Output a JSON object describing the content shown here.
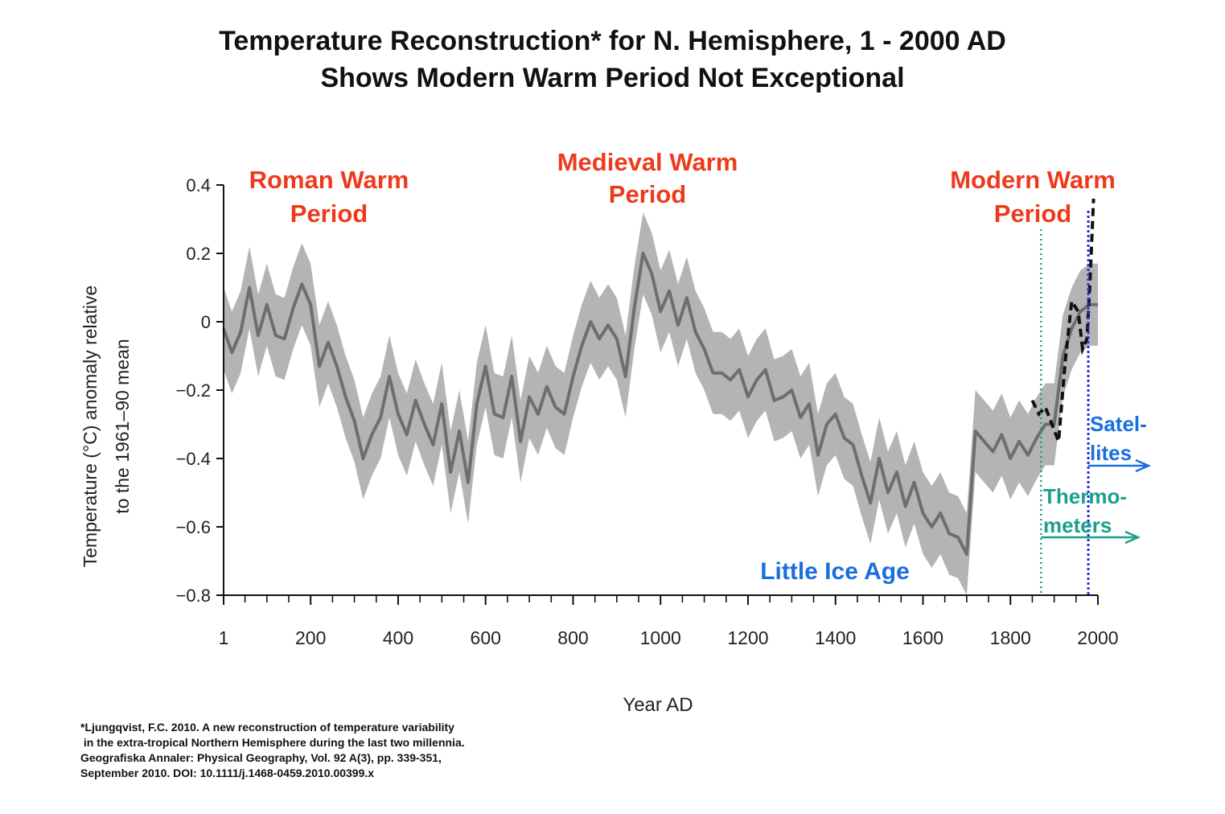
{
  "title_line1": "Temperature Reconstruction* for N. Hemisphere, 1 - 2000 AD",
  "title_line2": "Shows Modern Warm Period Not Exceptional",
  "reference": [
    "*Ljungqvist, F.C. 2010. A new reconstruction of temperature variability",
    " in the extra-tropical Northern Hemisphere during the last two millennia.",
    "Geografiska Annaler: Physical Geography, Vol. 92 A(3), pp. 339-351,",
    "September 2010. DOI: 10.1111/j.1468-0459.2010.00399.x"
  ],
  "colors": {
    "period_label": "#ee3a1c",
    "little_ice_age": "#1a6fe0",
    "satellites": "#1a6fe0",
    "thermometers": "#1aa08c",
    "band": "#b4b4b4",
    "line": "#6e6e6e"
  },
  "chart_data": {
    "type": "line",
    "xlabel": "Year AD",
    "ylabel_line1": "Temperature (°C) anomaly relative",
    "ylabel_line2": "to the 1961–90 mean",
    "xlim": [
      1,
      2000
    ],
    "ylim": [
      -0.8,
      0.4
    ],
    "xticks": [
      1,
      200,
      400,
      600,
      800,
      1000,
      1200,
      1400,
      1600,
      1800,
      2000
    ],
    "yticks": [
      0.4,
      0.2,
      0,
      -0.2,
      -0.4,
      -0.6,
      -0.8
    ],
    "ytick_labels": [
      "0.4",
      "0.2",
      "0",
      "−0.2",
      "−0.4",
      "−0.6",
      "−0.8"
    ],
    "annotations": {
      "roman": [
        "Roman Warm",
        "Period"
      ],
      "medieval": [
        "Medieval Warm",
        "Period"
      ],
      "modern": [
        "Modern Warm",
        "Period"
      ],
      "little_ice_age": "Little Ice Age",
      "satellites": [
        "Satel-",
        "lites"
      ],
      "thermometers": [
        "Thermo-",
        "meters"
      ]
    },
    "markers": {
      "thermometers_start_year": 1870,
      "satellites_start_year": 1978
    },
    "series": [
      {
        "style": "solid",
        "band_width": 0.12,
        "x": [
          1,
          20,
          40,
          60,
          80,
          100,
          120,
          140,
          160,
          180,
          200,
          220,
          240,
          260,
          280,
          300,
          320,
          340,
          360,
          380,
          400,
          420,
          440,
          460,
          480,
          500,
          520,
          540,
          560,
          580,
          600,
          620,
          640,
          660,
          680,
          700,
          720,
          740,
          760,
          780,
          800,
          820,
          840,
          860,
          880,
          900,
          920,
          940,
          960,
          980,
          1000,
          1020,
          1040,
          1060,
          1080,
          1100,
          1120,
          1140,
          1160,
          1180,
          1200,
          1220,
          1240,
          1260,
          1280,
          1300,
          1320,
          1340,
          1360,
          1380,
          1400,
          1420,
          1440,
          1460,
          1480,
          1500,
          1520,
          1540,
          1560,
          1580,
          1600,
          1620,
          1640,
          1660,
          1680,
          1700,
          1720,
          1740,
          1760,
          1780,
          1800,
          1820,
          1840,
          1860,
          1880,
          1900,
          1920,
          1940,
          1960,
          1980,
          2000
        ],
        "y": [
          -0.02,
          -0.09,
          -0.03,
          0.1,
          -0.04,
          0.05,
          -0.04,
          -0.05,
          0.04,
          0.11,
          0.05,
          -0.13,
          -0.06,
          -0.13,
          -0.22,
          -0.29,
          -0.4,
          -0.33,
          -0.28,
          -0.16,
          -0.27,
          -0.33,
          -0.23,
          -0.3,
          -0.36,
          -0.24,
          -0.44,
          -0.32,
          -0.47,
          -0.24,
          -0.13,
          -0.27,
          -0.28,
          -0.16,
          -0.35,
          -0.22,
          -0.27,
          -0.19,
          -0.25,
          -0.27,
          -0.16,
          -0.07,
          0.0,
          -0.05,
          -0.01,
          -0.05,
          -0.16,
          0.04,
          0.2,
          0.14,
          0.03,
          0.09,
          -0.01,
          0.07,
          -0.03,
          -0.08,
          -0.15,
          -0.15,
          -0.17,
          -0.14,
          -0.22,
          -0.17,
          -0.14,
          -0.23,
          -0.22,
          -0.2,
          -0.28,
          -0.24,
          -0.39,
          -0.3,
          -0.27,
          -0.34,
          -0.36,
          -0.45,
          -0.53,
          -0.4,
          -0.5,
          -0.44,
          -0.54,
          -0.47,
          -0.56,
          -0.6,
          -0.56,
          -0.62,
          -0.63,
          -0.68,
          -0.32,
          -0.35,
          -0.38,
          -0.33,
          -0.4,
          -0.35,
          -0.39,
          -0.34,
          -0.3,
          -0.3,
          -0.1,
          -0.02,
          0.03,
          0.05,
          0.05
        ]
      },
      {
        "style": "dashed",
        "x": [
          1850,
          1865,
          1880,
          1895,
          1910,
          1925,
          1940,
          1955,
          1965,
          1975,
          1982,
          1990
        ],
        "y": [
          -0.23,
          -0.27,
          -0.25,
          -0.3,
          -0.35,
          -0.12,
          0.06,
          0.03,
          -0.08,
          -0.05,
          0.12,
          0.36
        ]
      }
    ]
  }
}
